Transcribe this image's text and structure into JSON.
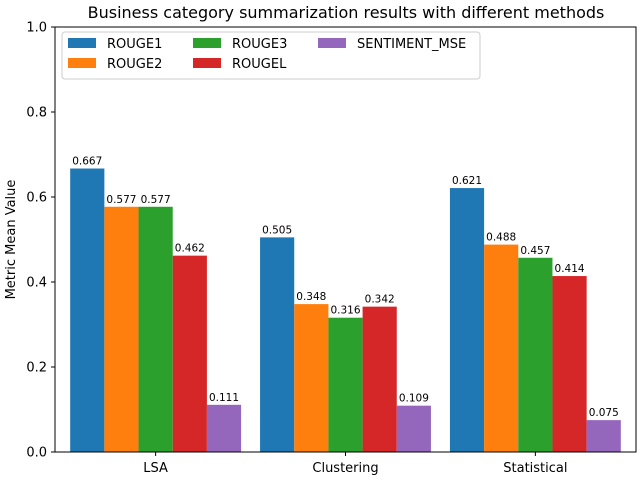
{
  "chart_data": {
    "type": "bar",
    "title": "Business category summarization results with different methods",
    "xlabel": "",
    "ylabel": "Metric Mean Value",
    "categories": [
      "LSA",
      "Clustering",
      "Statistical"
    ],
    "ylim": [
      0,
      1.0
    ],
    "yticks": [
      "0.0",
      "0.2",
      "0.4",
      "0.6",
      "0.8",
      "1.0"
    ],
    "grid": false,
    "legend_placement": "top-left",
    "series": [
      {
        "name": "ROUGE1",
        "color": "#1f77b4",
        "values": [
          0.667,
          0.505,
          0.621
        ]
      },
      {
        "name": "ROUGE2",
        "color": "#ff7f0e",
        "values": [
          0.577,
          0.348,
          0.488
        ]
      },
      {
        "name": "ROUGE3",
        "color": "#2ca02c",
        "values": [
          0.577,
          0.316,
          0.457
        ]
      },
      {
        "name": "ROUGEL",
        "color": "#d62728",
        "values": [
          0.462,
          0.342,
          0.414
        ]
      },
      {
        "name": "SENTIMENT_MSE",
        "color": "#9467bd",
        "values": [
          0.111,
          0.109,
          0.075
        ]
      }
    ]
  }
}
